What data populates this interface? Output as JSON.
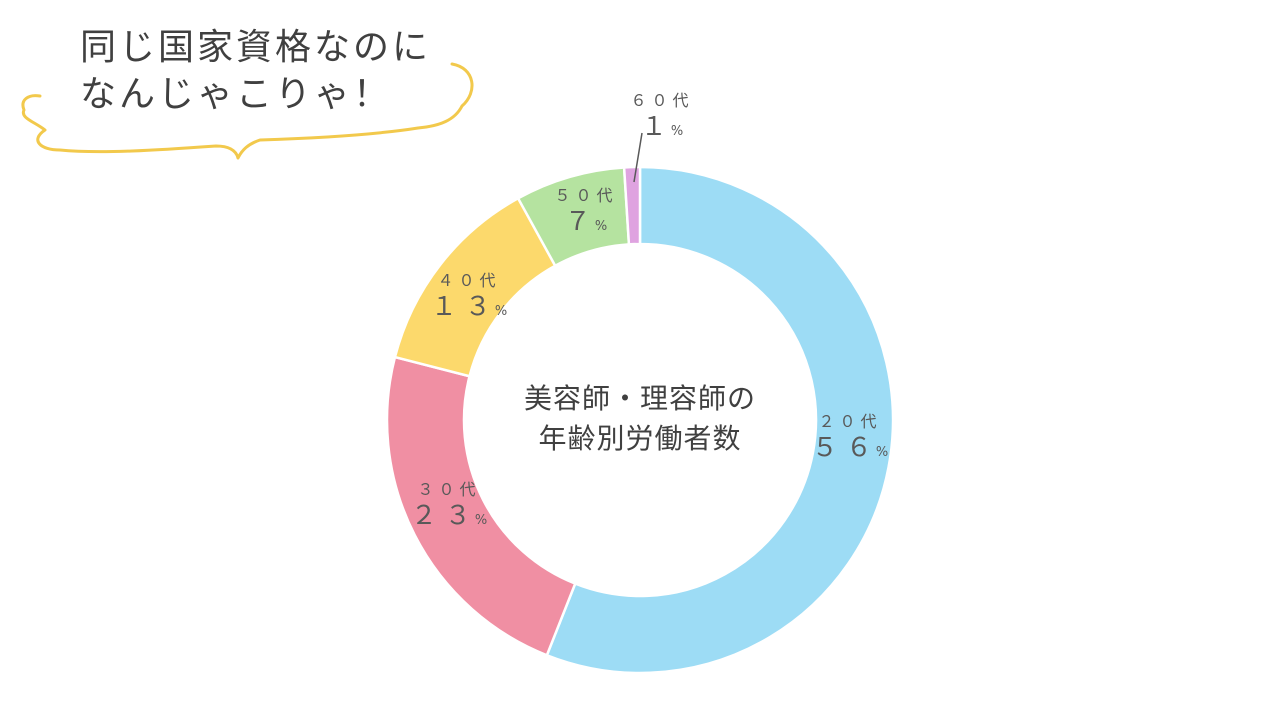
{
  "bubble": {
    "line1": "同じ国家資格なのに",
    "line2": "なんじゃこりゃ！",
    "outline_color": "#f2c94c"
  },
  "chart_data": {
    "type": "pie",
    "variant": "donut",
    "title": "美容師・理容師の年齢別労働者数",
    "title_lines": [
      "美容師・理容師の",
      "年齢別労働者数"
    ],
    "categories": [
      "２０代",
      "３０代",
      "４０代",
      "５０代",
      "６０代"
    ],
    "values": [
      56,
      23,
      13,
      7,
      1
    ],
    "value_labels": [
      "５６",
      "２３",
      "１３",
      "７",
      "１"
    ],
    "unit": "%",
    "colors": [
      "#9ddcf5",
      "#f08fa3",
      "#fcd96c",
      "#b5e3a0",
      "#dfa3e0"
    ],
    "legend": "none"
  }
}
